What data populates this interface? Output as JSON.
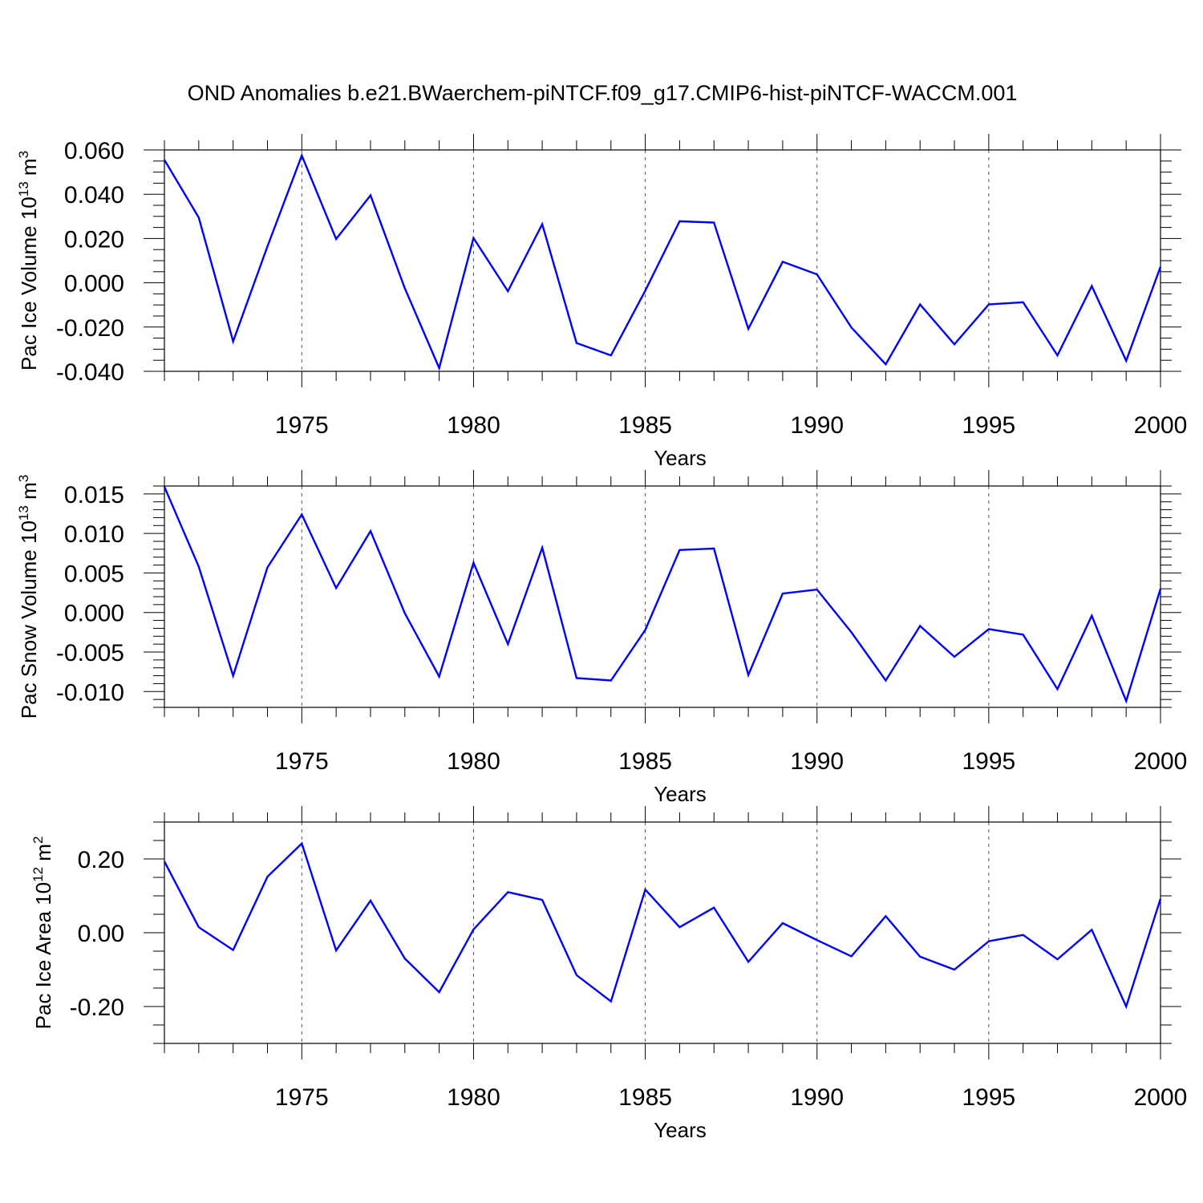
{
  "title": "OND Anomalies b.e21.BWaerchem-piNTCF.f09_g17.CMIP6-hist-piNTCF-WACCM.001",
  "line_color": "#0000ff",
  "chart_data": [
    {
      "type": "line",
      "ylabel": {
        "main": "Pac Ice Volume 10",
        "exp": "13",
        "unit": " m",
        "unit_exp": "3"
      },
      "xlabel": "Years",
      "xlim": [
        1971,
        2000
      ],
      "ylim": [
        -0.04,
        0.06
      ],
      "x_major_ticks": [
        1975,
        1980,
        1985,
        1990,
        1995,
        2000
      ],
      "x_tick_labels": [
        "1975",
        "1980",
        "1985",
        "1990",
        "1995",
        "2000"
      ],
      "y_major_ticks": [
        -0.04,
        -0.02,
        0.0,
        0.02,
        0.04,
        0.06
      ],
      "y_tick_labels": [
        "-0.040",
        "-0.020",
        "0.000",
        "0.020",
        "0.040",
        "0.060"
      ],
      "y_minor_step": 0.005,
      "grid": "vertical dashed at major x ticks",
      "x": [
        1971,
        1972,
        1973,
        1974,
        1975,
        1976,
        1977,
        1978,
        1979,
        1980,
        1981,
        1982,
        1983,
        1984,
        1985,
        1986,
        1987,
        1988,
        1989,
        1990,
        1991,
        1992,
        1993,
        1994,
        1995,
        1996,
        1997,
        1998,
        1999,
        2000
      ],
      "values": [
        0.0555,
        0.0295,
        -0.0265,
        0.0165,
        0.0575,
        0.0198,
        0.0395,
        -0.0025,
        -0.0385,
        0.0202,
        -0.0038,
        0.0265,
        -0.0272,
        -0.0328,
        -0.0035,
        0.0278,
        0.0272,
        -0.0208,
        0.0095,
        0.0038,
        -0.0202,
        -0.0368,
        -0.0098,
        -0.0278,
        -0.0098,
        -0.0088,
        -0.0328,
        -0.0015,
        -0.0352,
        0.0072
      ]
    },
    {
      "type": "line",
      "ylabel": {
        "main": "Pac Snow Volume 10",
        "exp": "13",
        "unit": " m",
        "unit_exp": "3"
      },
      "xlabel": "Years",
      "xlim": [
        1971,
        2000
      ],
      "ylim": [
        -0.012,
        0.016
      ],
      "x_major_ticks": [
        1975,
        1980,
        1985,
        1990,
        1995,
        2000
      ],
      "x_tick_labels": [
        "1975",
        "1980",
        "1985",
        "1990",
        "1995",
        "2000"
      ],
      "y_major_ticks": [
        -0.01,
        -0.005,
        0.0,
        0.005,
        0.01,
        0.015
      ],
      "y_tick_labels": [
        "-0.010",
        "-0.005",
        "0.000",
        "0.005",
        "0.010",
        "0.015"
      ],
      "y_minor_step": 0.001,
      "grid": "vertical dashed at major x ticks",
      "x": [
        1971,
        1972,
        1973,
        1974,
        1975,
        1976,
        1977,
        1978,
        1979,
        1980,
        1981,
        1982,
        1983,
        1984,
        1985,
        1986,
        1987,
        1988,
        1989,
        1990,
        1991,
        1992,
        1993,
        1994,
        1995,
        1996,
        1997,
        1998,
        1999,
        2000
      ],
      "values": [
        0.0159,
        0.0058,
        -0.008,
        0.0057,
        0.0124,
        0.0031,
        0.0103,
        -0.0001,
        -0.0081,
        0.0063,
        -0.004,
        0.0082,
        -0.0083,
        -0.0086,
        -0.0022,
        0.0079,
        0.0081,
        -0.0079,
        0.0024,
        0.0029,
        -0.0025,
        -0.0086,
        -0.0017,
        -0.0056,
        -0.0021,
        -0.0028,
        -0.0097,
        -0.0004,
        -0.0112,
        0.003
      ]
    },
    {
      "type": "line",
      "ylabel": {
        "main": "Pac Ice Area 10",
        "exp": "12",
        "unit": " m",
        "unit_exp": "2"
      },
      "xlabel": "Years",
      "xlim": [
        1971,
        2000
      ],
      "ylim": [
        -0.3,
        0.3
      ],
      "x_major_ticks": [
        1975,
        1980,
        1985,
        1990,
        1995,
        2000
      ],
      "x_tick_labels": [
        "1975",
        "1980",
        "1985",
        "1990",
        "1995",
        "2000"
      ],
      "y_major_ticks": [
        -0.2,
        0.0,
        0.2
      ],
      "y_tick_labels": [
        "-0.20",
        "0.00",
        "0.20"
      ],
      "y_minor_step": 0.05,
      "grid": "vertical dashed at major x ticks",
      "x": [
        1971,
        1972,
        1973,
        1974,
        1975,
        1976,
        1977,
        1978,
        1979,
        1980,
        1981,
        1982,
        1983,
        1984,
        1985,
        1986,
        1987,
        1988,
        1989,
        1990,
        1991,
        1992,
        1993,
        1994,
        1995,
        1996,
        1997,
        1998,
        1999,
        2000
      ],
      "values": [
        0.193,
        0.015,
        -0.047,
        0.152,
        0.242,
        -0.048,
        0.087,
        -0.07,
        -0.161,
        0.009,
        0.11,
        0.089,
        -0.115,
        -0.186,
        0.117,
        0.015,
        0.068,
        -0.079,
        0.026,
        -0.02,
        -0.064,
        0.045,
        -0.065,
        -0.1,
        -0.023,
        -0.006,
        -0.072,
        0.008,
        -0.2,
        0.092
      ]
    }
  ]
}
